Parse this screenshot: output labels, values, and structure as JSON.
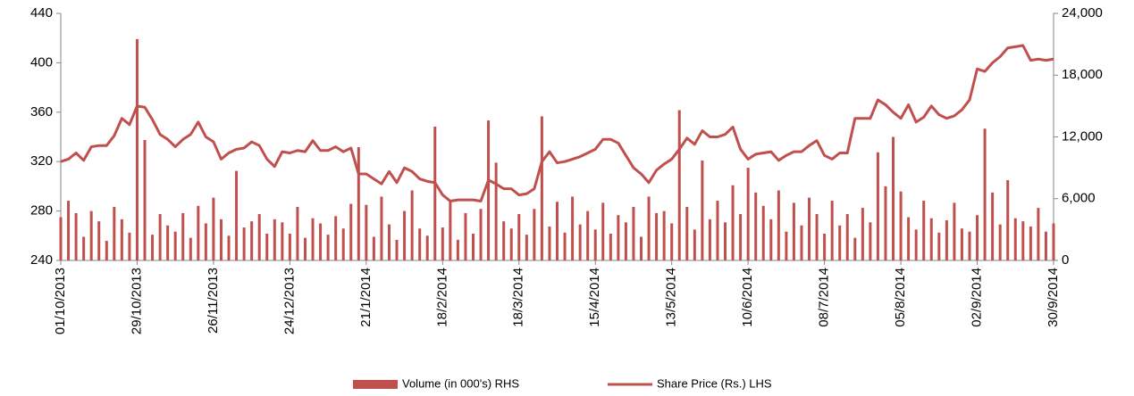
{
  "chart_data": {
    "type": "combo",
    "categories": [
      "01/10/2013",
      null,
      null,
      null,
      null,
      null,
      null,
      null,
      null,
      null,
      "29/10/2013",
      null,
      null,
      null,
      null,
      null,
      null,
      null,
      null,
      null,
      "26/11/2013",
      null,
      null,
      null,
      null,
      null,
      null,
      null,
      null,
      null,
      "24/12/2013",
      null,
      null,
      null,
      null,
      null,
      null,
      null,
      null,
      null,
      "21/1/2014",
      null,
      null,
      null,
      null,
      null,
      null,
      null,
      null,
      null,
      "18/2/2014",
      null,
      null,
      null,
      null,
      null,
      null,
      null,
      null,
      null,
      "18/3/2014",
      null,
      null,
      null,
      null,
      null,
      null,
      null,
      null,
      null,
      "15/4/2014",
      null,
      null,
      null,
      null,
      null,
      null,
      null,
      null,
      null,
      "13/5/2014",
      null,
      null,
      null,
      null,
      null,
      null,
      null,
      null,
      null,
      "10/6/2014",
      null,
      null,
      null,
      null,
      null,
      null,
      null,
      null,
      null,
      "08/7/2014",
      null,
      null,
      null,
      null,
      null,
      null,
      null,
      null,
      null,
      "05/8/2014",
      null,
      null,
      null,
      null,
      null,
      null,
      null,
      null,
      null,
      "02/9/2014",
      null,
      null,
      null,
      null,
      null,
      null,
      null,
      null,
      null,
      "30/9/2014"
    ],
    "series": [
      {
        "name": "Volume (in 000's) RHS",
        "type": "bar",
        "axis": "y2",
        "color": "#c0504d",
        "values": [
          4200,
          5800,
          4600,
          2300,
          4800,
          3800,
          1900,
          5200,
          4000,
          2700,
          21500,
          11700,
          2500,
          4500,
          3400,
          2800,
          4600,
          2200,
          5300,
          3600,
          6100,
          4000,
          2400,
          8700,
          3200,
          3800,
          4500,
          2600,
          4000,
          3700,
          2600,
          5200,
          2200,
          4100,
          3600,
          2500,
          4300,
          3100,
          5500,
          11000,
          5400,
          2300,
          6200,
          3500,
          2000,
          4800,
          6800,
          3100,
          2400,
          13000,
          3200,
          5800,
          2000,
          4600,
          2600,
          5000,
          13600,
          9500,
          3800,
          3100,
          4500,
          2500,
          5000,
          14000,
          3300,
          5700,
          2700,
          6200,
          3500,
          4800,
          3000,
          5600,
          2600,
          4400,
          3700,
          5200,
          2300,
          6200,
          4600,
          4800,
          3600,
          14600,
          5200,
          3000,
          9700,
          4000,
          5800,
          3700,
          7300,
          4500,
          9000,
          6600,
          5300,
          4000,
          6800,
          2800,
          5600,
          3400,
          6100,
          4500,
          2600,
          5800,
          3400,
          4500,
          2200,
          5100,
          3700,
          10500,
          7200,
          12000,
          6700,
          4200,
          3000,
          5800,
          4100,
          2700,
          3900,
          5600,
          3100,
          2800,
          4400,
          12800,
          6600,
          3500,
          7800,
          4100,
          3800,
          3300,
          5100,
          2800,
          3600
        ]
      },
      {
        "name": "Share Price (Rs.) LHS",
        "type": "line",
        "color": "#c0504d",
        "values": [
          320,
          322,
          327,
          321,
          332,
          333,
          333,
          341,
          355,
          350,
          365,
          364,
          354,
          342,
          338,
          332,
          338,
          342,
          352,
          340,
          336,
          322,
          327,
          330,
          331,
          336,
          333,
          322,
          316,
          328,
          327,
          329,
          328,
          337,
          329,
          329,
          332,
          328,
          331,
          310,
          310,
          306,
          302,
          312,
          303,
          315,
          312,
          306,
          304,
          303,
          293,
          288,
          289,
          289,
          289,
          288,
          305,
          302,
          298,
          298,
          293,
          294,
          298,
          320,
          328,
          319,
          320,
          322,
          324,
          327,
          330,
          338,
          338,
          335,
          325,
          315,
          310,
          303,
          313,
          318,
          322,
          330,
          339,
          334,
          345,
          340,
          340,
          342,
          348,
          330,
          322,
          326,
          327,
          328,
          321,
          325,
          328,
          328,
          333,
          337,
          325,
          322,
          327,
          327,
          355,
          355,
          355,
          370,
          366,
          360,
          355,
          366,
          352,
          356,
          365,
          358,
          355,
          357,
          362,
          370,
          395,
          393,
          400,
          405,
          412,
          413,
          414,
          402,
          403,
          402,
          403
        ]
      }
    ],
    "ylim": [
      240,
      440
    ],
    "yticks": [
      240,
      280,
      320,
      360,
      400,
      440
    ],
    "y2lim": [
      0,
      24000
    ],
    "y2ticks": [
      0,
      {
        "value": 6000,
        "label": "6,000"
      },
      {
        "value": 12000,
        "label": "12,000"
      },
      {
        "value": 18000,
        "label": "18,000"
      },
      {
        "value": 24000,
        "label": "24,000"
      }
    ],
    "legend": "bottom"
  }
}
